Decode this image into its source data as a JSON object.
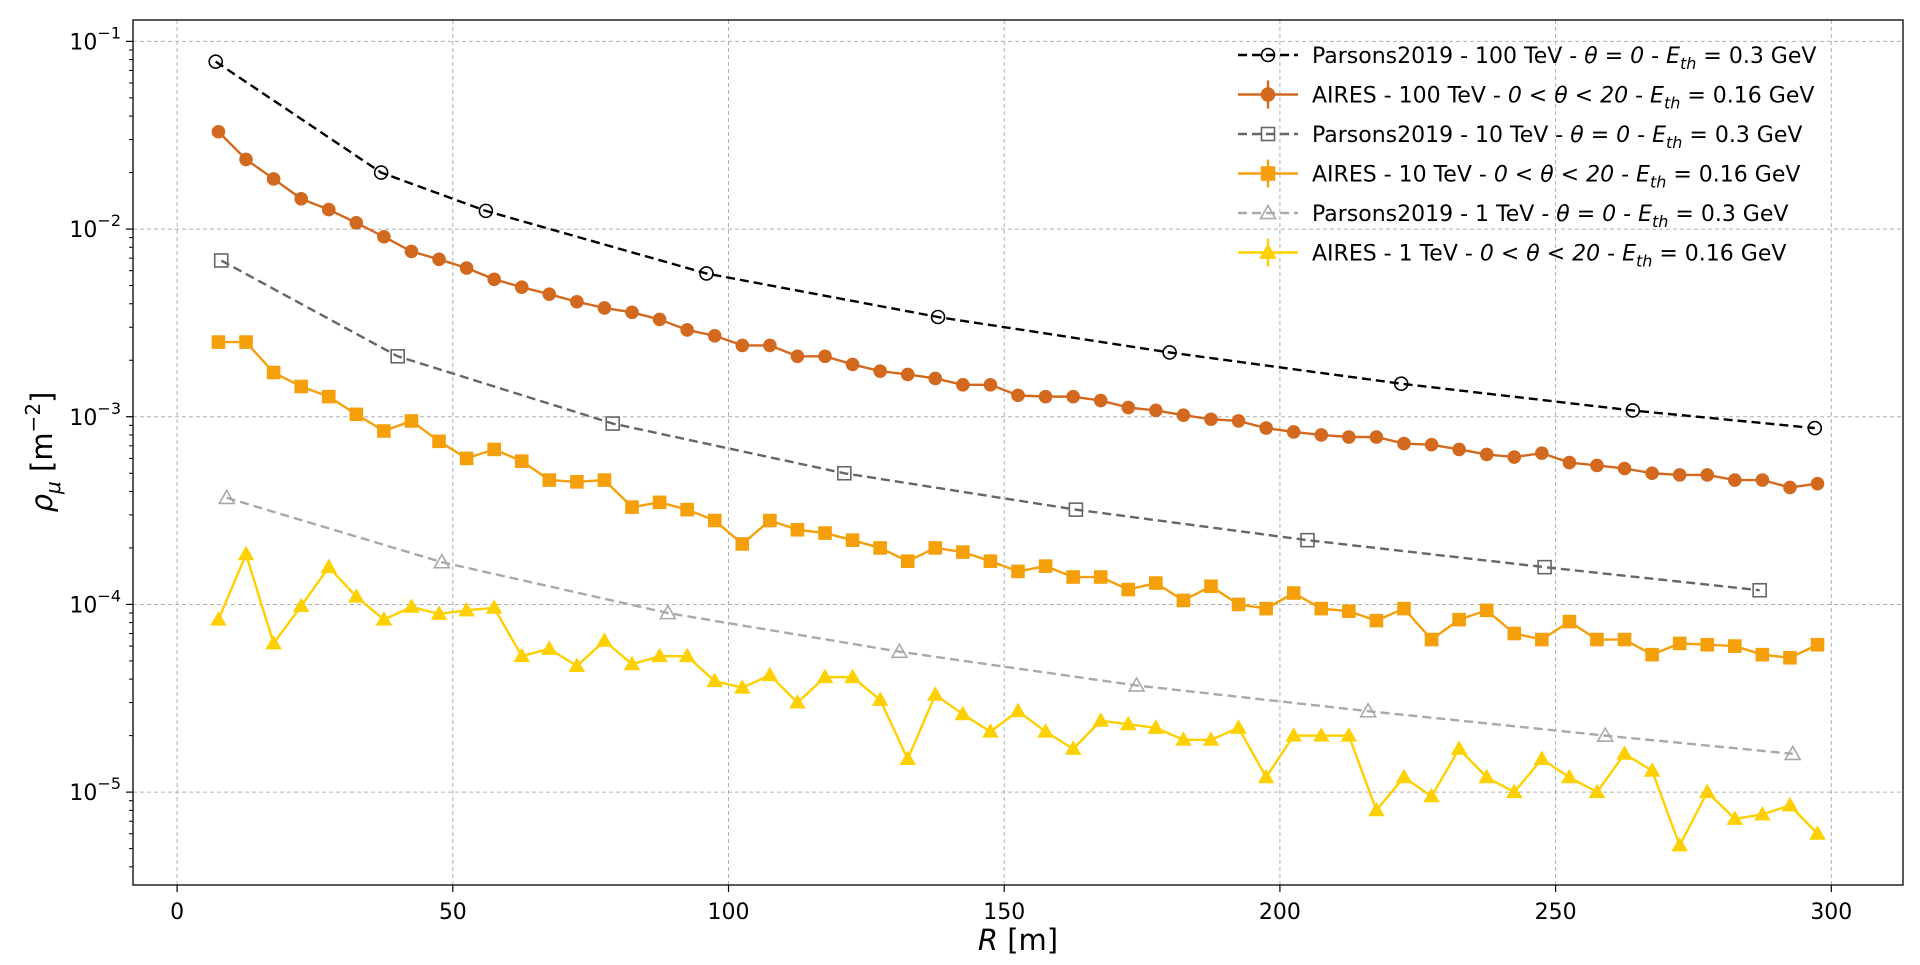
{
  "chart_data": {
    "type": "line",
    "title": "",
    "xlabel": "R",
    "xlabel_unit": "[m]",
    "ylabel": "ρ",
    "ylabel_sub": "μ",
    "ylabel_unit": "[m",
    "ylabel_unit_sup": "−2",
    "ylabel_unit_close": "]",
    "yscale": "log",
    "xlim": [
      -8,
      313
    ],
    "ylim": [
      3.2e-06,
      0.13
    ],
    "grid": true,
    "legend_position": "top-right",
    "xticks": [
      {
        "value": 0,
        "label": "0"
      },
      {
        "value": 50,
        "label": "50"
      },
      {
        "value": 100,
        "label": "100"
      },
      {
        "value": 150,
        "label": "150"
      },
      {
        "value": 200,
        "label": "200"
      },
      {
        "value": 250,
        "label": "250"
      },
      {
        "value": 300,
        "label": "300"
      }
    ],
    "yticks": [
      {
        "value": 0.1,
        "base": "10",
        "exp": "−1"
      },
      {
        "value": 0.01,
        "base": "10",
        "exp": "−2"
      },
      {
        "value": 0.001,
        "base": "10",
        "exp": "−3"
      },
      {
        "value": 0.0001,
        "base": "10",
        "exp": "−4"
      },
      {
        "value": 1e-05,
        "base": "10",
        "exp": "−5"
      }
    ],
    "series": [
      {
        "name": "Parsons2019 - 100 TeV - θ = 0 - E_th = 0.3 GeV",
        "label_prefix": "Parsons2019 - 100 TeV - ",
        "label_angle": "θ = 0",
        "label_mid": " - ",
        "label_eth": "= 0.3 GeV",
        "color": "#000000",
        "dash": "9,5",
        "marker": "circle-open",
        "x": [
          7,
          37,
          56,
          96,
          138,
          180,
          222,
          264,
          297
        ],
        "values": [
          0.078,
          0.02,
          0.0125,
          0.0058,
          0.0034,
          0.0022,
          0.0015,
          0.00108,
          0.00087
        ]
      },
      {
        "name": "AIRES - 100 TeV - 0 < θ < 20 - E_th = 0.16 GeV",
        "label_prefix": "AIRES - 100 TeV - ",
        "label_angle": "0 < θ < 20",
        "label_mid": " - ",
        "label_eth": "= 0.16 GeV",
        "color": "#d2691e",
        "dash": "",
        "marker": "circle-filled",
        "x": [
          7.5,
          12.5,
          17.5,
          22.5,
          27.5,
          32.5,
          37.5,
          42.5,
          47.5,
          52.5,
          57.5,
          62.5,
          67.5,
          72.5,
          77.5,
          82.5,
          87.5,
          92.5,
          97.5,
          102.5,
          107.5,
          112.5,
          117.5,
          122.5,
          127.5,
          132.5,
          137.5,
          142.5,
          147.5,
          152.5,
          157.5,
          162.5,
          167.5,
          172.5,
          177.5,
          182.5,
          187.5,
          192.5,
          197.5,
          202.5,
          207.5,
          212.5,
          217.5,
          222.5,
          227.5,
          232.5,
          237.5,
          242.5,
          247.5,
          252.5,
          257.5,
          262.5,
          267.5,
          272.5,
          277.5,
          282.5,
          287.5,
          292.5,
          297.5
        ],
        "values": [
          0.033,
          0.0235,
          0.0185,
          0.0145,
          0.0127,
          0.0108,
          0.0091,
          0.0076,
          0.0069,
          0.0062,
          0.0054,
          0.0049,
          0.0045,
          0.0041,
          0.0038,
          0.0036,
          0.0033,
          0.0029,
          0.0027,
          0.0024,
          0.0024,
          0.0021,
          0.0021,
          0.0019,
          0.00175,
          0.00168,
          0.0016,
          0.00148,
          0.00148,
          0.0013,
          0.00128,
          0.00128,
          0.00122,
          0.00112,
          0.00108,
          0.00102,
          0.00097,
          0.00095,
          0.00087,
          0.00083,
          0.0008,
          0.00078,
          0.00078,
          0.00072,
          0.00071,
          0.00067,
          0.00063,
          0.00061,
          0.00064,
          0.00057,
          0.00055,
          0.00053,
          0.0005,
          0.00049,
          0.00049,
          0.00046,
          0.00046,
          0.00042,
          0.00044
        ]
      },
      {
        "name": "Parsons2019 - 10 TeV - θ = 0 - E_th = 0.3 GeV",
        "label_prefix": "Parsons2019 - 10 TeV - ",
        "label_angle": "θ = 0",
        "label_mid": " - ",
        "label_eth": "= 0.3 GeV",
        "color": "#666666",
        "dash": "9,5",
        "marker": "square-open",
        "x": [
          8,
          40,
          79,
          121,
          163,
          205,
          248,
          287
        ],
        "values": [
          0.0068,
          0.0021,
          0.00092,
          0.0005,
          0.00032,
          0.00022,
          0.000158,
          0.000119
        ]
      },
      {
        "name": "AIRES - 10 TeV - 0 < θ < 20 - E_th = 0.16 GeV",
        "label_prefix": "AIRES - 10 TeV - ",
        "label_angle": "0 < θ < 20",
        "label_mid": " - ",
        "label_eth": "= 0.16 GeV",
        "color": "#f5a00b",
        "dash": "",
        "marker": "square-filled",
        "x": [
          7.5,
          12.5,
          17.5,
          22.5,
          27.5,
          32.5,
          37.5,
          42.5,
          47.5,
          52.5,
          57.5,
          62.5,
          67.5,
          72.5,
          77.5,
          82.5,
          87.5,
          92.5,
          97.5,
          102.5,
          107.5,
          112.5,
          117.5,
          122.5,
          127.5,
          132.5,
          137.5,
          142.5,
          147.5,
          152.5,
          157.5,
          162.5,
          167.5,
          172.5,
          177.5,
          182.5,
          187.5,
          192.5,
          197.5,
          202.5,
          207.5,
          212.5,
          217.5,
          222.5,
          227.5,
          232.5,
          237.5,
          242.5,
          247.5,
          252.5,
          257.5,
          262.5,
          267.5,
          272.5,
          277.5,
          282.5,
          287.5,
          292.5,
          297.5
        ],
        "values": [
          0.0025,
          0.0025,
          0.00172,
          0.00145,
          0.00128,
          0.00103,
          0.00084,
          0.00095,
          0.00074,
          0.0006,
          0.00067,
          0.00058,
          0.00046,
          0.00045,
          0.00046,
          0.00033,
          0.00035,
          0.00032,
          0.00028,
          0.00021,
          0.00028,
          0.00025,
          0.00024,
          0.00022,
          0.0002,
          0.00017,
          0.0002,
          0.00019,
          0.00017,
          0.00015,
          0.00016,
          0.00014,
          0.00014,
          0.00012,
          0.00013,
          0.000105,
          0.000125,
          0.0001,
          9.5e-05,
          0.000115,
          9.5e-05,
          9.2e-05,
          8.2e-05,
          9.5e-05,
          6.5e-05,
          8.3e-05,
          9.3e-05,
          7e-05,
          6.5e-05,
          8.1e-05,
          6.5e-05,
          6.5e-05,
          5.4e-05,
          6.2e-05,
          6.1e-05,
          6e-05,
          5.4e-05,
          5.2e-05,
          6.1e-05
        ]
      },
      {
        "name": "Parsons2019 - 1 TeV - θ = 0 - E_th = 0.3 GeV",
        "label_prefix": "Parsons2019 - 1 TeV - ",
        "label_angle": "θ = 0",
        "label_mid": " - ",
        "label_eth": "= 0.3 GeV",
        "color": "#a9a9a9",
        "dash": "9,5",
        "marker": "triangle-open",
        "x": [
          9,
          48,
          89,
          131,
          174,
          216,
          259,
          293
        ],
        "values": [
          0.00037,
          0.000168,
          9e-05,
          5.6e-05,
          3.7e-05,
          2.7e-05,
          2e-05,
          1.6e-05
        ]
      },
      {
        "name": "AIRES - 1 TeV - 0 < θ < 20 - E_th = 0.16 GeV",
        "label_prefix": "AIRES - 1 TeV - ",
        "label_angle": "0 < θ < 20",
        "label_mid": " - ",
        "label_eth": "= 0.16 GeV",
        "color": "#ffd000",
        "dash": "",
        "marker": "triangle-filled",
        "x": [
          7.5,
          12.5,
          17.5,
          22.5,
          27.5,
          32.5,
          37.5,
          42.5,
          47.5,
          52.5,
          57.5,
          62.5,
          67.5,
          72.5,
          77.5,
          82.5,
          87.5,
          92.5,
          97.5,
          102.5,
          107.5,
          112.5,
          117.5,
          122.5,
          127.5,
          132.5,
          137.5,
          142.5,
          147.5,
          152.5,
          157.5,
          162.5,
          167.5,
          172.5,
          177.5,
          182.5,
          187.5,
          192.5,
          197.5,
          202.5,
          207.5,
          212.5,
          217.5,
          222.5,
          227.5,
          232.5,
          237.5,
          242.5,
          247.5,
          252.5,
          257.5,
          262.5,
          267.5,
          272.5,
          277.5,
          282.5,
          287.5,
          292.5,
          297.5
        ],
        "values": [
          8.3e-05,
          0.000185,
          6.2e-05,
          9.8e-05,
          0.000158,
          0.00011,
          8.3e-05,
          9.7e-05,
          8.9e-05,
          9.3e-05,
          9.6e-05,
          5.3e-05,
          5.8e-05,
          4.7e-05,
          6.4e-05,
          4.8e-05,
          5.3e-05,
          5.3e-05,
          3.9e-05,
          3.6e-05,
          4.2e-05,
          3e-05,
          4.1e-05,
          4.1e-05,
          3.1e-05,
          1.5e-05,
          3.3e-05,
          2.6e-05,
          2.1e-05,
          2.7e-05,
          2.1e-05,
          1.7e-05,
          2.4e-05,
          2.3e-05,
          2.2e-05,
          1.9e-05,
          1.9e-05,
          2.2e-05,
          1.2e-05,
          2e-05,
          2e-05,
          2e-05,
          8e-06,
          1.2e-05,
          9.5e-06,
          1.7e-05,
          1.2e-05,
          1e-05,
          1.5e-05,
          1.2e-05,
          1e-05,
          1.6e-05,
          1.3e-05,
          5.2e-06,
          1e-05,
          7.2e-06,
          7.6e-06,
          8.5e-06,
          6e-06
        ]
      }
    ]
  }
}
